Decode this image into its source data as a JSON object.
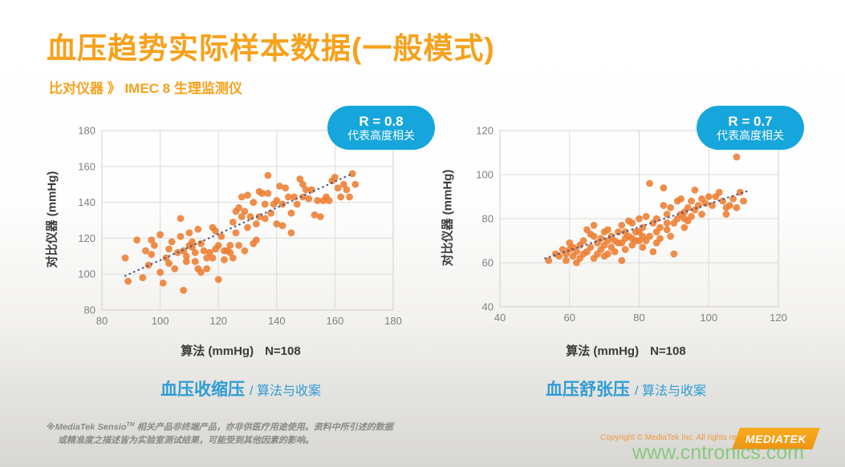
{
  "slide": {
    "title": "血压趋势实际样本数据(一般模式)",
    "subtitle": "比对仪器 》 IMEC 8 生理监测仪"
  },
  "charts": [
    {
      "badge": {
        "r": "R = 0.8",
        "desc": "代表高度相关"
      },
      "y_axis_label": "对比仪器 (mmHg)",
      "x_axis_label": "算法 (mmHg)",
      "n_label": "N=108",
      "caption_main": "血压收缩压",
      "caption_sub": "/ 算法与收案"
    },
    {
      "badge": {
        "r": "R = 0.7",
        "desc": "代表高度相关"
      },
      "y_axis_label": "对比仪器 (mmHg)",
      "x_axis_label": "算法 (mmHg)",
      "n_label": "N=108",
      "caption_main": "血压舒张压",
      "caption_sub": "/ 算法与收案"
    }
  ],
  "chart_data": [
    {
      "type": "scatter",
      "title": "血压收缩压 / 算法与收案 (systolic)",
      "xlabel": "算法 (mmHg)",
      "ylabel": "对比仪器 (mmHg)",
      "n": 108,
      "r_value": 0.8,
      "xlim": [
        80,
        180
      ],
      "ylim": [
        80,
        180
      ],
      "xticks": [
        80,
        100,
        120,
        140,
        160,
        180
      ],
      "yticks": [
        80,
        100,
        120,
        140,
        160,
        180
      ],
      "grid": true,
      "trendline": {
        "x1": 88,
        "y1": 99,
        "x2": 166,
        "y2": 156
      },
      "points": [
        [
          88,
          109
        ],
        [
          89,
          96
        ],
        [
          92,
          119
        ],
        [
          94,
          98
        ],
        [
          95,
          113
        ],
        [
          96,
          105
        ],
        [
          97,
          119
        ],
        [
          97,
          111
        ],
        [
          98,
          116
        ],
        [
          100,
          122
        ],
        [
          100,
          101
        ],
        [
          101,
          95
        ],
        [
          102,
          109
        ],
        [
          103,
          114
        ],
        [
          103,
          106
        ],
        [
          104,
          118
        ],
        [
          105,
          103
        ],
        [
          106,
          112
        ],
        [
          107,
          121
        ],
        [
          107,
          131
        ],
        [
          108,
          91
        ],
        [
          108,
          113
        ],
        [
          109,
          110
        ],
        [
          109,
          107
        ],
        [
          110,
          123
        ],
        [
          110,
          116
        ],
        [
          111,
          118
        ],
        [
          111,
          115
        ],
        [
          112,
          112
        ],
        [
          112,
          107
        ],
        [
          113,
          103
        ],
        [
          113,
          125
        ],
        [
          114,
          101
        ],
        [
          114,
          117
        ],
        [
          115,
          113
        ],
        [
          116,
          103
        ],
        [
          116,
          109
        ],
        [
          117,
          112
        ],
        [
          118,
          109
        ],
        [
          118,
          126
        ],
        [
          119,
          124
        ],
        [
          119,
          114
        ],
        [
          120,
          116
        ],
        [
          120,
          97
        ],
        [
          121,
          121
        ],
        [
          122,
          113
        ],
        [
          122,
          108
        ],
        [
          123,
          113
        ],
        [
          124,
          112
        ],
        [
          124,
          116
        ],
        [
          125,
          109
        ],
        [
          125,
          129
        ],
        [
          126,
          123
        ],
        [
          126,
          135
        ],
        [
          127,
          116
        ],
        [
          127,
          137
        ],
        [
          128,
          143
        ],
        [
          128,
          132
        ],
        [
          129,
          113
        ],
        [
          129,
          135
        ],
        [
          130,
          144
        ],
        [
          130,
          126
        ],
        [
          131,
          132
        ],
        [
          132,
          140
        ],
        [
          132,
          117
        ],
        [
          133,
          128
        ],
        [
          133,
          119
        ],
        [
          134,
          132
        ],
        [
          134,
          146
        ],
        [
          135,
          145
        ],
        [
          136,
          131
        ],
        [
          136,
          139
        ],
        [
          137,
          155
        ],
        [
          137,
          145
        ],
        [
          138,
          134
        ],
        [
          139,
          139
        ],
        [
          140,
          128
        ],
        [
          140,
          141
        ],
        [
          141,
          149
        ],
        [
          142,
          127
        ],
        [
          142,
          139
        ],
        [
          143,
          148
        ],
        [
          144,
          143
        ],
        [
          145,
          123
        ],
        [
          145,
          134
        ],
        [
          146,
          143
        ],
        [
          147,
          139
        ],
        [
          148,
          153
        ],
        [
          149,
          150
        ],
        [
          149,
          143
        ],
        [
          150,
          147
        ],
        [
          151,
          142
        ],
        [
          152,
          147
        ],
        [
          153,
          133
        ],
        [
          154,
          141
        ],
        [
          155,
          132
        ],
        [
          156,
          141
        ],
        [
          157,
          143
        ],
        [
          158,
          141
        ],
        [
          159,
          152
        ],
        [
          160,
          154
        ],
        [
          161,
          148
        ],
        [
          162,
          143
        ],
        [
          163,
          150
        ],
        [
          164,
          147
        ],
        [
          165,
          143
        ],
        [
          166,
          156
        ],
        [
          167,
          150
        ]
      ]
    },
    {
      "type": "scatter",
      "title": "血压舒张压 / 算法与收案 (diastolic)",
      "xlabel": "算法 (mmHg)",
      "ylabel": "对比仪器 (mmHg)",
      "n": 108,
      "r_value": 0.7,
      "xlim": [
        40,
        120
      ],
      "ylim": [
        40,
        120
      ],
      "xticks": [
        40,
        60,
        80,
        100,
        120
      ],
      "yticks": [
        40,
        60,
        80,
        100,
        120
      ],
      "grid": true,
      "trendline": {
        "x1": 53,
        "y1": 62,
        "x2": 112,
        "y2": 93
      },
      "points": [
        [
          54,
          61
        ],
        [
          56,
          64
        ],
        [
          57,
          63
        ],
        [
          58,
          66
        ],
        [
          59,
          61
        ],
        [
          59,
          64
        ],
        [
          60,
          69
        ],
        [
          60,
          66
        ],
        [
          61,
          63
        ],
        [
          61,
          67
        ],
        [
          62,
          60
        ],
        [
          62,
          65
        ],
        [
          63,
          68
        ],
        [
          63,
          62
        ],
        [
          64,
          64
        ],
        [
          64,
          70
        ],
        [
          65,
          65
        ],
        [
          65,
          75
        ],
        [
          66,
          73
        ],
        [
          66,
          67
        ],
        [
          67,
          77
        ],
        [
          67,
          72
        ],
        [
          67,
          62
        ],
        [
          68,
          69
        ],
        [
          68,
          64
        ],
        [
          69,
          71
        ],
        [
          69,
          66
        ],
        [
          70,
          74
        ],
        [
          70,
          68
        ],
        [
          70,
          63
        ],
        [
          71,
          70
        ],
        [
          71,
          75
        ],
        [
          71,
          64
        ],
        [
          72,
          67
        ],
        [
          72,
          72
        ],
        [
          73,
          65
        ],
        [
          73,
          70
        ],
        [
          74,
          74
        ],
        [
          74,
          69
        ],
        [
          75,
          61
        ],
        [
          75,
          77
        ],
        [
          75,
          69
        ],
        [
          76,
          71
        ],
        [
          76,
          66
        ],
        [
          76,
          74
        ],
        [
          77,
          79
        ],
        [
          77,
          72
        ],
        [
          78,
          78
        ],
        [
          78,
          71
        ],
        [
          78,
          68
        ],
        [
          79,
          74
        ],
        [
          79,
          70
        ],
        [
          80,
          80
        ],
        [
          80,
          74
        ],
        [
          80,
          70
        ],
        [
          81,
          72
        ],
        [
          81,
          76
        ],
        [
          81,
          67
        ],
        [
          82,
          70
        ],
        [
          82,
          81
        ],
        [
          83,
          96
        ],
        [
          83,
          72
        ],
        [
          84,
          78
        ],
        [
          84,
          65
        ],
        [
          85,
          69
        ],
        [
          85,
          80
        ],
        [
          85,
          74
        ],
        [
          86,
          76
        ],
        [
          86,
          71
        ],
        [
          87,
          94
        ],
        [
          87,
          86
        ],
        [
          88,
          78
        ],
        [
          88,
          82
        ],
        [
          88,
          75
        ],
        [
          89,
          72
        ],
        [
          89,
          85
        ],
        [
          90,
          78
        ],
        [
          90,
          64
        ],
        [
          91,
          88
        ],
        [
          91,
          80
        ],
        [
          92,
          89
        ],
        [
          92,
          82
        ],
        [
          93,
          83
        ],
        [
          93,
          76
        ],
        [
          93,
          80
        ],
        [
          94,
          85
        ],
        [
          94,
          79
        ],
        [
          95,
          88
        ],
        [
          95,
          81
        ],
        [
          96,
          93
        ],
        [
          96,
          84
        ],
        [
          97,
          86
        ],
        [
          98,
          89
        ],
        [
          98,
          82
        ],
        [
          99,
          87
        ],
        [
          100,
          90
        ],
        [
          101,
          86
        ],
        [
          102,
          90
        ],
        [
          103,
          92
        ],
        [
          104,
          88
        ],
        [
          105,
          85
        ],
        [
          105,
          82
        ],
        [
          106,
          86
        ],
        [
          107,
          89
        ],
        [
          108,
          108
        ],
        [
          108,
          85
        ],
        [
          109,
          92
        ],
        [
          110,
          88
        ]
      ]
    }
  ],
  "footer": {
    "disclaimer_brand": "※MediaTek Sensio",
    "disclaimer_tm": "TM",
    "disclaimer_line1_rest": " 相关产品非终端产品，亦非供医疗用途使用。资料中所引述的数据",
    "disclaimer_line2": "或精准度之描述皆为实验室测试结果，可能受到其他因素的影响。",
    "copyright": "Copyright © MediaTek Inc. All rights reserved",
    "logo_text": "MEDIATEK",
    "watermark": "www.cntronics.com"
  },
  "colors": {
    "title_orange": "#F7A11C",
    "badge_blue": "#16A6DB",
    "caption_blue": "#2F9CD6",
    "dot": "#ED7D31",
    "trendline": "#41568C",
    "gridline": "#DCDBD8",
    "plot_border": "#D0CFCB",
    "tick_text": "#7F7F7F",
    "logo_orange": "#F6A01B",
    "watermark_green": "#86C77C"
  }
}
